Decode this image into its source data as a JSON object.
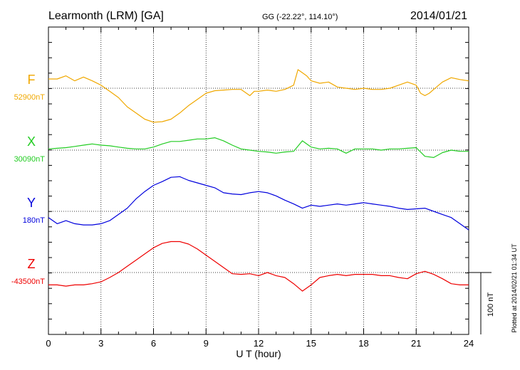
{
  "header": {
    "station": "Learmonth (LRM)  [GA]",
    "coords": "GG (-22.22°, 114.10°)",
    "date": "2014/01/21"
  },
  "footer": {
    "plotted": "Plotted at 2014/02/21 01:34 UT"
  },
  "scale_bar": {
    "label": "100 nT",
    "nT": 100
  },
  "chart_data": {
    "type": "line",
    "title": "Learmonth (LRM)  [GA]",
    "xlabel": "U T (hour)",
    "xlim": [
      0,
      24
    ],
    "x_ticks": [
      0,
      3,
      6,
      9,
      12,
      15,
      18,
      21,
      24
    ],
    "grid": true,
    "series": [
      {
        "name": "F",
        "base_label": "52900nT",
        "baseline_nT": 52900,
        "color": "#f0a800",
        "x": [
          0,
          0.5,
          1,
          1.5,
          2,
          2.5,
          3,
          3.5,
          4,
          4.5,
          5,
          5.5,
          6,
          6.5,
          7,
          7.5,
          8,
          8.5,
          9,
          9.5,
          10,
          10.5,
          11,
          11.5,
          11.75,
          12,
          12.5,
          13,
          13.5,
          14,
          14.25,
          14.5,
          14.75,
          15,
          15.5,
          16,
          16.5,
          17,
          17.5,
          18,
          18.5,
          19,
          19.5,
          20,
          20.5,
          21,
          21.25,
          21.5,
          21.75,
          22,
          22.5,
          23,
          23.5,
          24
        ],
        "values": [
          15,
          15,
          20,
          12,
          18,
          12,
          5,
          -5,
          -15,
          -30,
          -40,
          -50,
          -55,
          -54,
          -50,
          -40,
          -28,
          -18,
          -8,
          -4,
          -3,
          -2,
          -2,
          -12,
          -5,
          -5,
          -3,
          -5,
          -2,
          5,
          30,
          25,
          20,
          12,
          8,
          10,
          2,
          0,
          -2,
          0,
          -2,
          -2,
          0,
          5,
          10,
          5,
          -8,
          -12,
          -8,
          -2,
          10,
          17,
          14,
          12
        ]
      },
      {
        "name": "X",
        "base_label": "30090nT",
        "baseline_nT": 30090,
        "color": "#22cc22",
        "x": [
          0,
          0.5,
          1,
          1.5,
          2,
          2.5,
          3,
          3.5,
          4,
          4.5,
          5,
          5.5,
          6,
          6.5,
          7,
          7.5,
          8,
          8.5,
          9,
          9.5,
          10,
          10.5,
          11,
          11.5,
          12,
          12.5,
          13,
          13.5,
          14,
          14.5,
          15,
          15.5,
          16,
          16.5,
          17,
          17.5,
          18,
          18.5,
          19,
          19.5,
          20,
          20.5,
          21,
          21.5,
          22,
          22.5,
          23,
          23.5,
          24
        ],
        "values": [
          2,
          3,
          4,
          6,
          8,
          10,
          8,
          7,
          5,
          3,
          2,
          2,
          5,
          10,
          14,
          14,
          16,
          18,
          18,
          20,
          15,
          8,
          2,
          0,
          -2,
          -3,
          -5,
          -3,
          -2,
          15,
          5,
          2,
          3,
          2,
          -5,
          2,
          2,
          2,
          0,
          2,
          2,
          3,
          4,
          -10,
          -12,
          -4,
          0,
          -2,
          -2
        ]
      },
      {
        "name": "Y",
        "base_label": "180nT",
        "baseline_nT": 180,
        "color": "#0000dd",
        "x": [
          0,
          0.5,
          1,
          1.5,
          2,
          2.5,
          3,
          3.5,
          4,
          4.5,
          5,
          5.5,
          6,
          6.5,
          7,
          7.5,
          8,
          8.5,
          9,
          9.5,
          10,
          10.5,
          11,
          11.5,
          12,
          12.5,
          13,
          13.5,
          14,
          14.5,
          15,
          15.5,
          16,
          16.5,
          17,
          17.5,
          18,
          18.5,
          19,
          19.5,
          20,
          20.5,
          21,
          21.5,
          22,
          22.5,
          23,
          23.5,
          24
        ],
        "values": [
          -10,
          -20,
          -15,
          -20,
          -22,
          -22,
          -20,
          -15,
          -5,
          5,
          20,
          32,
          42,
          48,
          55,
          56,
          50,
          46,
          42,
          38,
          30,
          28,
          27,
          30,
          32,
          30,
          25,
          18,
          12,
          5,
          10,
          8,
          10,
          12,
          10,
          12,
          14,
          12,
          10,
          8,
          5,
          3,
          4,
          5,
          0,
          -5,
          -10,
          -20,
          -30
        ]
      },
      {
        "name": "Z",
        "base_label": "-43500nT",
        "baseline_nT": -43500,
        "color": "#ee0000",
        "x": [
          0,
          0.5,
          1,
          1.5,
          2,
          2.5,
          3,
          3.5,
          4,
          4.5,
          5,
          5.5,
          6,
          6.5,
          7,
          7.5,
          8,
          8.5,
          9,
          9.5,
          10,
          10.5,
          11,
          11.5,
          12,
          12.5,
          13,
          13.5,
          14,
          14.5,
          15,
          15.5,
          16,
          16.5,
          17,
          17.5,
          18,
          18.5,
          19,
          19.5,
          20,
          20.5,
          21,
          21.5,
          22,
          22.5,
          23,
          23.5,
          24
        ],
        "values": [
          -20,
          -20,
          -22,
          -20,
          -20,
          -18,
          -15,
          -8,
          0,
          10,
          20,
          30,
          40,
          47,
          50,
          50,
          46,
          38,
          28,
          18,
          8,
          -2,
          -3,
          -2,
          -5,
          0,
          -5,
          -8,
          -18,
          -30,
          -20,
          -8,
          -5,
          -3,
          -5,
          -3,
          -3,
          -3,
          -5,
          -5,
          -8,
          -10,
          -2,
          2,
          -3,
          -10,
          -18,
          -20,
          -20
        ]
      }
    ]
  }
}
